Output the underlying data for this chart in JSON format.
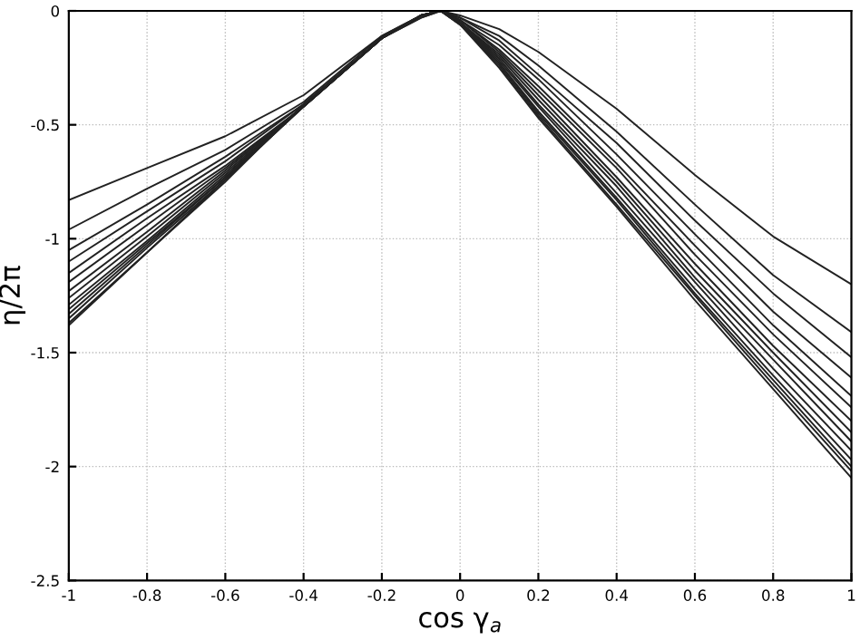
{
  "chart_data": {
    "type": "line",
    "xlabel": "cos γ$_{a}$",
    "ylabel": "η/2π",
    "xlim": [
      -1,
      1
    ],
    "ylim": [
      -2.5,
      0
    ],
    "xticks": [
      -1,
      -0.8,
      -0.6,
      -0.4,
      -0.2,
      0,
      0.2,
      0.4,
      0.6,
      0.8,
      1
    ],
    "yticks": [
      -2.5,
      -2,
      -1.5,
      -1,
      -0.5,
      0
    ],
    "grid": true,
    "line_style": "solid",
    "marker": "none",
    "x": [
      -1,
      -0.8,
      -0.6,
      -0.4,
      -0.2,
      -0.1,
      -0.05,
      0,
      0.1,
      0.2,
      0.4,
      0.6,
      0.8,
      1
    ],
    "series": [
      {
        "color": "#222222",
        "values": [
          -0.83,
          -0.69,
          -0.55,
          -0.37,
          -0.11,
          -0.02,
          0,
          -0.02,
          -0.08,
          -0.18,
          -0.43,
          -0.72,
          -0.99,
          -1.2
        ]
      },
      {
        "color": "#222222",
        "values": [
          -0.96,
          -0.78,
          -0.61,
          -0.4,
          -0.11,
          -0.02,
          0,
          -0.03,
          -0.11,
          -0.24,
          -0.53,
          -0.85,
          -1.16,
          -1.41
        ]
      },
      {
        "color": "#222222",
        "values": [
          -1.05,
          -0.85,
          -0.64,
          -0.41,
          -0.12,
          -0.02,
          0,
          -0.03,
          -0.13,
          -0.28,
          -0.58,
          -0.92,
          -1.24,
          -1.52
        ]
      },
      {
        "color": "#222222",
        "values": [
          -1.1,
          -0.88,
          -0.66,
          -0.41,
          -0.12,
          -0.02,
          0,
          -0.04,
          -0.15,
          -0.3,
          -0.63,
          -0.98,
          -1.32,
          -1.61
        ]
      },
      {
        "color": "#222222",
        "values": [
          -1.15,
          -0.91,
          -0.68,
          -0.42,
          -0.12,
          -0.02,
          0,
          -0.04,
          -0.17,
          -0.33,
          -0.67,
          -1.03,
          -1.38,
          -1.69
        ]
      },
      {
        "color": "#222222",
        "values": [
          -1.19,
          -0.94,
          -0.69,
          -0.42,
          -0.12,
          -0.02,
          0,
          -0.04,
          -0.18,
          -0.35,
          -0.69,
          -1.07,
          -1.42,
          -1.74
        ]
      },
      {
        "color": "#222222",
        "values": [
          -1.23,
          -0.97,
          -0.7,
          -0.42,
          -0.12,
          -0.02,
          0,
          -0.05,
          -0.19,
          -0.37,
          -0.73,
          -1.11,
          -1.47,
          -1.8
        ]
      },
      {
        "color": "#222222",
        "values": [
          -1.26,
          -0.99,
          -0.71,
          -0.42,
          -0.12,
          -0.03,
          0,
          -0.05,
          -0.2,
          -0.39,
          -0.75,
          -1.14,
          -1.5,
          -1.85
        ]
      },
      {
        "color": "#222222",
        "values": [
          -1.29,
          -1.01,
          -0.72,
          -0.42,
          -0.12,
          -0.02,
          0,
          -0.05,
          -0.21,
          -0.41,
          -0.77,
          -1.17,
          -1.53,
          -1.89
        ]
      },
      {
        "color": "#222222",
        "values": [
          -1.31,
          -1.02,
          -0.73,
          -0.42,
          -0.12,
          -0.02,
          0,
          -0.05,
          -0.22,
          -0.42,
          -0.8,
          -1.19,
          -1.57,
          -1.93
        ]
      },
      {
        "color": "#222222",
        "values": [
          -1.33,
          -1.03,
          -0.73,
          -0.42,
          -0.12,
          -0.03,
          0,
          -0.05,
          -0.23,
          -0.44,
          -0.82,
          -1.22,
          -1.6,
          -1.97
        ]
      },
      {
        "color": "#222222",
        "values": [
          -1.35,
          -1.04,
          -0.74,
          -0.42,
          -0.12,
          -0.02,
          0,
          -0.06,
          -0.23,
          -0.45,
          -0.83,
          -1.24,
          -1.62,
          -2.0
        ]
      },
      {
        "color": "#222222",
        "values": [
          -1.37,
          -1.06,
          -0.74,
          -0.42,
          -0.12,
          -0.02,
          0,
          -0.06,
          -0.24,
          -0.46,
          -0.85,
          -1.25,
          -1.64,
          -2.02
        ]
      },
      {
        "color": "#222222",
        "values": [
          -1.38,
          -1.06,
          -0.75,
          -0.41,
          -0.12,
          -0.02,
          0,
          -0.06,
          -0.25,
          -0.47,
          -0.86,
          -1.27,
          -1.66,
          -2.05
        ]
      }
    ]
  }
}
